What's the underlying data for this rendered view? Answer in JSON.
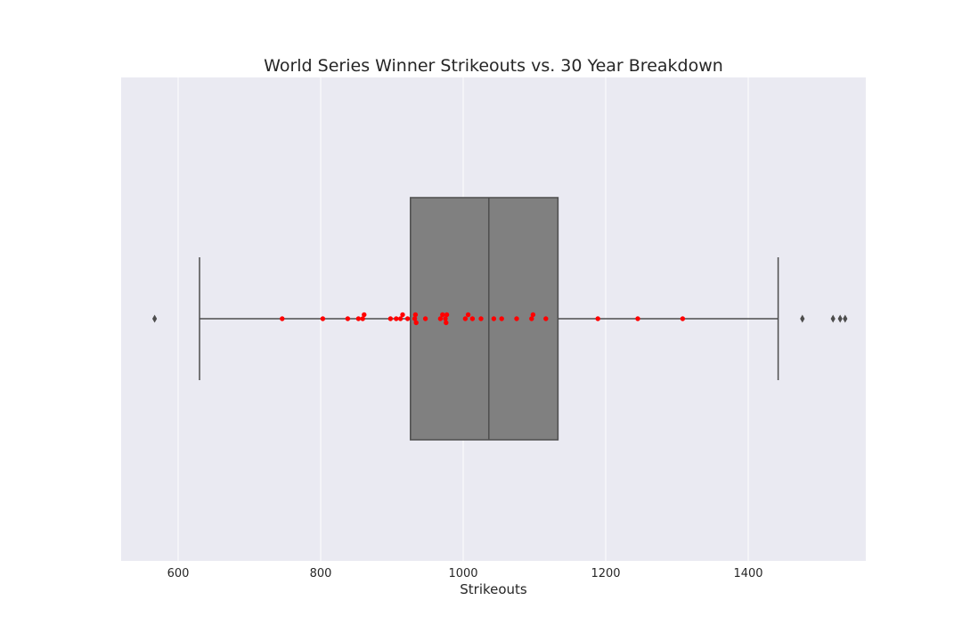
{
  "chart_data": {
    "type": "box",
    "title": "World Series Winner Strikeouts vs. 30 Year Breakdown",
    "xlabel": "Strikeouts",
    "ylabel": "",
    "xlim": [
      520,
      1565
    ],
    "xticks": [
      600,
      800,
      1000,
      1200,
      1400
    ],
    "xtick_labels": [
      "600",
      "800",
      "1000",
      "1200",
      "1400"
    ],
    "grid": true,
    "box": {
      "whisker_low": 630,
      "q1": 926,
      "median": 1036,
      "q3": 1133,
      "whisker_high": 1442,
      "color": "#808080",
      "outliers": [
        567,
        1476,
        1519,
        1529,
        1536
      ]
    },
    "winners": {
      "color": "#ff0000",
      "values": [
        746,
        803,
        838,
        853,
        859,
        861,
        898,
        906,
        912,
        915,
        922,
        932,
        933,
        934,
        947,
        968,
        971,
        975,
        976,
        977,
        1003,
        1007,
        1013,
        1025,
        1043,
        1054,
        1075,
        1096,
        1098,
        1116,
        1189,
        1245,
        1308
      ]
    }
  }
}
